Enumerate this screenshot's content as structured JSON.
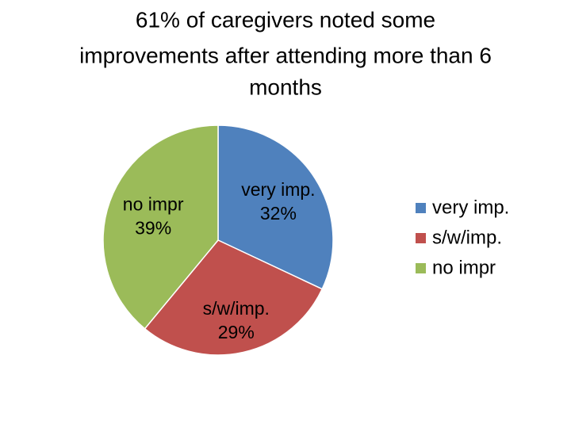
{
  "chart_data": {
    "type": "pie",
    "title": [
      "61% of caregivers noted some",
      "improvements after attending more than 6",
      "months"
    ],
    "categories": [
      "very imp.",
      "s/w/imp.",
      "no impr"
    ],
    "values": [
      32,
      29,
      39
    ],
    "value_labels": [
      "32%",
      "29%",
      "39%"
    ],
    "colors": [
      "#4f81bd",
      "#c0504d",
      "#9bbb59"
    ],
    "legend": "right"
  }
}
